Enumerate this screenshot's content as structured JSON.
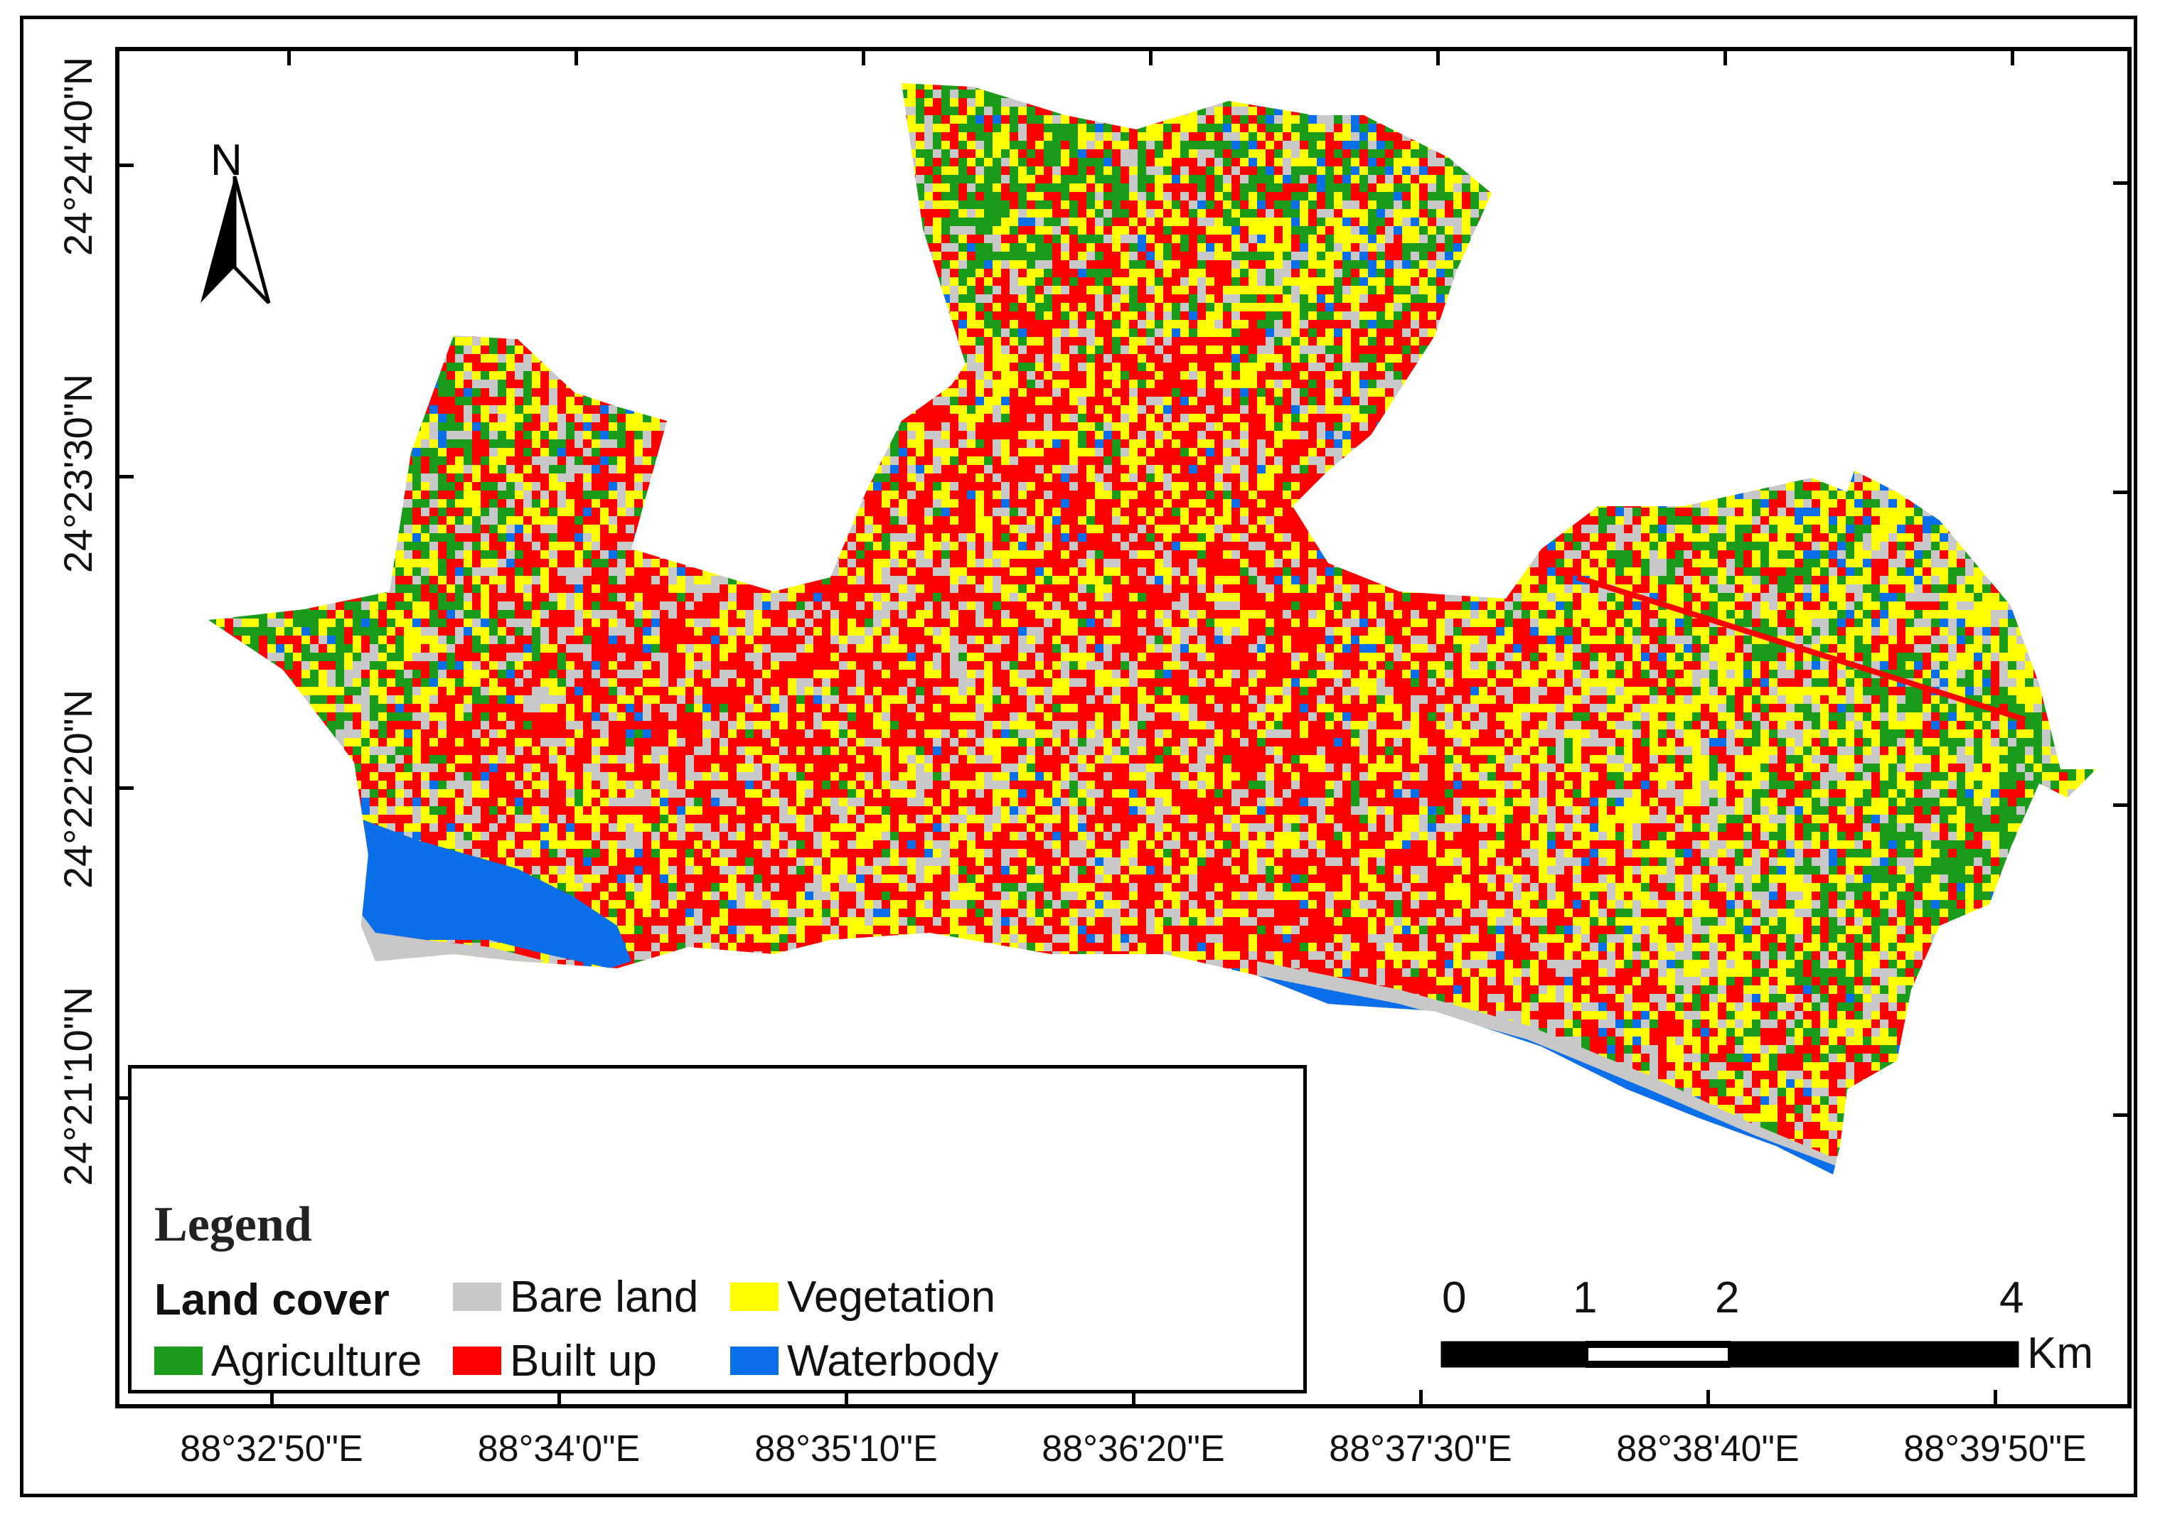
{
  "latitude_labels": [
    "24°24'40\"N",
    "24°23'30\"N",
    "24°22'20\"N",
    "24°21'10\"N"
  ],
  "longitude_labels": [
    "88°32'50\"E",
    "88°34'0\"E",
    "88°35'10\"E",
    "88°36'20\"E",
    "88°37'30\"E",
    "88°38'40\"E",
    "88°39'50\"E"
  ],
  "north_arrow": {
    "label": "N",
    "icon": "north-arrow-icon"
  },
  "legend": {
    "title": "Legend",
    "subtitle": "Land cover",
    "items": [
      {
        "label": "Bare land",
        "color": "#c8c8c8"
      },
      {
        "label": "Vegetation",
        "color": "#ffff00"
      },
      {
        "label": "Agriculture",
        "color": "#1a9c1a"
      },
      {
        "label": "Built up",
        "color": "#ff0000"
      },
      {
        "label": "Waterbody",
        "color": "#0a6fe8"
      }
    ]
  },
  "scale_bar": {
    "ticks": [
      "0",
      "1",
      "2",
      "4"
    ],
    "unit": "Km"
  },
  "land_cover_colors": {
    "bare": "#c8c8c8",
    "vegetation": "#ffff00",
    "agriculture": "#1a9c1a",
    "built_up": "#ff0000",
    "water": "#0a6fe8"
  }
}
